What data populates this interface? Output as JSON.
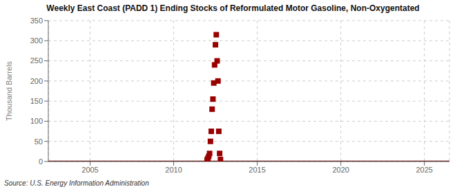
{
  "chart_data": {
    "type": "scatter",
    "title": "Weekly East Coast (PADD 1) Ending Stocks of Reformulated Motor Gasoline, Non-Oxygentated",
    "ylabel": "Thousand Barrels",
    "annotations": [
      "Source: U.S. Energy Information Administration"
    ],
    "xlim": [
      2002.5,
      2026.5
    ],
    "xticks": [
      2005,
      2010,
      2015,
      2020,
      2025
    ],
    "ylim": [
      0,
      350
    ],
    "yticks": [
      0,
      50,
      100,
      150,
      200,
      250,
      300,
      350
    ],
    "grid": true,
    "series": [
      {
        "type": "line",
        "color": "#6b0000",
        "x": [
          2002.5,
          2026.5
        ],
        "values": [
          0,
          0
        ]
      },
      {
        "type": "scatter",
        "color": "#990000",
        "marker": "square",
        "x": [
          2012.0,
          2012.05,
          2012.1,
          2012.15,
          2012.2,
          2012.25,
          2012.3,
          2012.35,
          2012.4,
          2012.45,
          2012.5,
          2012.55,
          2012.6,
          2012.65,
          2012.7,
          2012.75,
          2012.8
        ],
        "values": [
          4,
          8,
          13,
          20,
          50,
          75,
          130,
          155,
          195,
          240,
          290,
          315,
          250,
          200,
          75,
          20,
          5
        ]
      }
    ]
  }
}
